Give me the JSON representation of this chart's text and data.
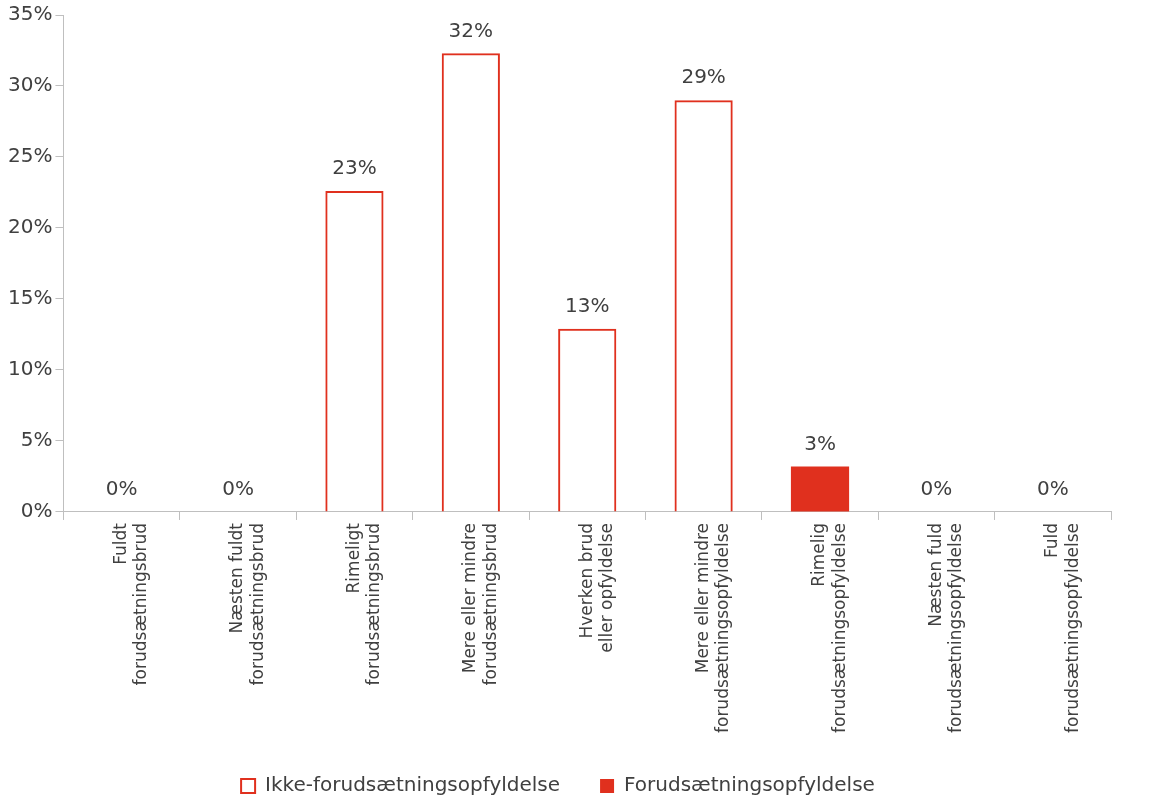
{
  "chart_data": {
    "type": "bar",
    "categories": [
      "Fuldt\nforudsætningsbrud",
      "Næsten fuldt\nforudsætningsbrud",
      "Rimeligt\nforudsætningsbrud",
      "Mere eller mindre\nforudsætningsbrud",
      "Hverken brud\neller opfyldelse",
      "Mere eller mindre\nforudsætningsopfyldelse",
      "Rimelig\nforudsætningsopfyldelse",
      "Næsten fuld\nforudsætningsopfyldelse",
      "Fuld\nforudsætningsopfyldelse"
    ],
    "series": [
      {
        "name": "Ikke-forudsætningsopfyldelse",
        "color": "#e0301e",
        "values": [
          0,
          0,
          22.6,
          32.3,
          12.9,
          29.0,
          null,
          null,
          null
        ],
        "value_labels": [
          "0%",
          "0%",
          "23%",
          "32%",
          "13%",
          "29%",
          null,
          null,
          null
        ]
      },
      {
        "name": "Forudsætningsopfyldelse",
        "color": "#e0301e",
        "values": [
          null,
          null,
          null,
          null,
          null,
          null,
          3.2,
          0,
          0
        ],
        "value_labels": [
          null,
          null,
          null,
          null,
          null,
          null,
          "3%",
          "0%",
          "0%"
        ]
      }
    ],
    "ylim": [
      0,
      35
    ],
    "yticks": [
      {
        "value": 0,
        "label": "0%"
      },
      {
        "value": 5,
        "label": "5%"
      },
      {
        "value": 10,
        "label": "10%"
      },
      {
        "value": 15,
        "label": "15%"
      },
      {
        "value": 20,
        "label": "20%"
      },
      {
        "value": 25,
        "label": "25%"
      },
      {
        "value": 30,
        "label": "30%"
      },
      {
        "value": 35,
        "label": "35%"
      }
    ],
    "grid": false,
    "legend": "bottom"
  }
}
